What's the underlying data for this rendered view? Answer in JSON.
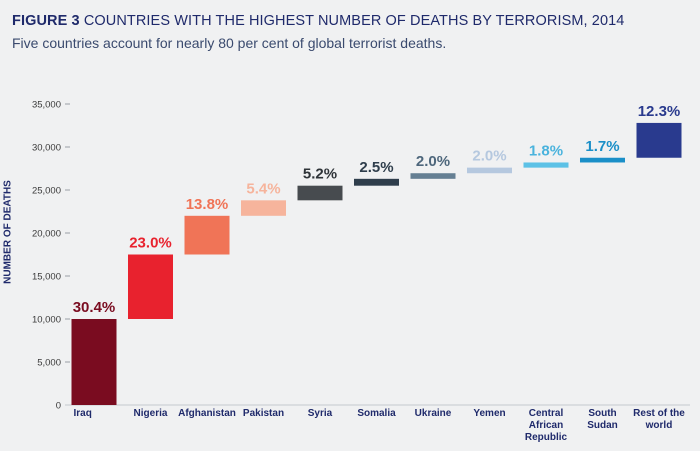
{
  "header": {
    "figure_label": "FIGURE 3",
    "title": "COUNTRIES WITH THE HIGHEST NUMBER OF DEATHS BY TERRORISM, 2014",
    "subtitle": "Five countries account for nearly 80 per cent of global terrorist deaths."
  },
  "chart_data": {
    "type": "bar",
    "subtype": "waterfall",
    "ylabel": "NUMBER OF DEATHS",
    "ylim": [
      0,
      35000
    ],
    "yticks": [
      0,
      5000,
      10000,
      15000,
      20000,
      25000,
      30000,
      35000
    ],
    "ytick_labels": [
      "0",
      "5,000",
      "10,000",
      "15,000",
      "20,000",
      "25,000",
      "30,000",
      "35,000"
    ],
    "categories": [
      [
        "Iraq"
      ],
      [
        "Nigeria"
      ],
      [
        "Afghanistan"
      ],
      [
        "Pakistan"
      ],
      [
        "Syria"
      ],
      [
        "Somalia"
      ],
      [
        "Ukraine"
      ],
      [
        "Yemen"
      ],
      [
        "Central",
        "African",
        "Republic"
      ],
      [
        "South",
        "Sudan"
      ],
      [
        "Rest of the",
        "world"
      ]
    ],
    "bars": [
      {
        "start": 0,
        "end": 10000,
        "label": "30.4%",
        "color": "#7a0c20",
        "label_color": "#7a0c20"
      },
      {
        "start": 10000,
        "end": 17500,
        "label": "23.0%",
        "color": "#e8222e",
        "label_color": "#e8222e"
      },
      {
        "start": 17500,
        "end": 22000,
        "label": "13.8%",
        "color": "#f07457",
        "label_color": "#f07457"
      },
      {
        "start": 22000,
        "end": 23800,
        "label": "5.4%",
        "color": "#f6b49c",
        "label_color": "#f6b49c"
      },
      {
        "start": 23800,
        "end": 25500,
        "label": "5.2%",
        "color": "#474b4f",
        "label_color": "#2e3338"
      },
      {
        "start": 25500,
        "end": 26300,
        "label": "2.5%",
        "color": "#2f3e4c",
        "label_color": "#2f3e4c"
      },
      {
        "start": 26300,
        "end": 26950,
        "label": "2.0%",
        "color": "#657f93",
        "label_color": "#4e677c"
      },
      {
        "start": 26950,
        "end": 27600,
        "label": "2.0%",
        "color": "#b5c8df",
        "label_color": "#b5c8df"
      },
      {
        "start": 27600,
        "end": 28200,
        "label": "1.8%",
        "color": "#5cc1e6",
        "label_color": "#4ab3dd"
      },
      {
        "start": 28200,
        "end": 28750,
        "label": "1.7%",
        "color": "#1a8fc8",
        "label_color": "#1a8fc8"
      },
      {
        "start": 28750,
        "end": 32800,
        "label": "12.3%",
        "color": "#293a8e",
        "label_color": "#293a8e"
      }
    ]
  }
}
